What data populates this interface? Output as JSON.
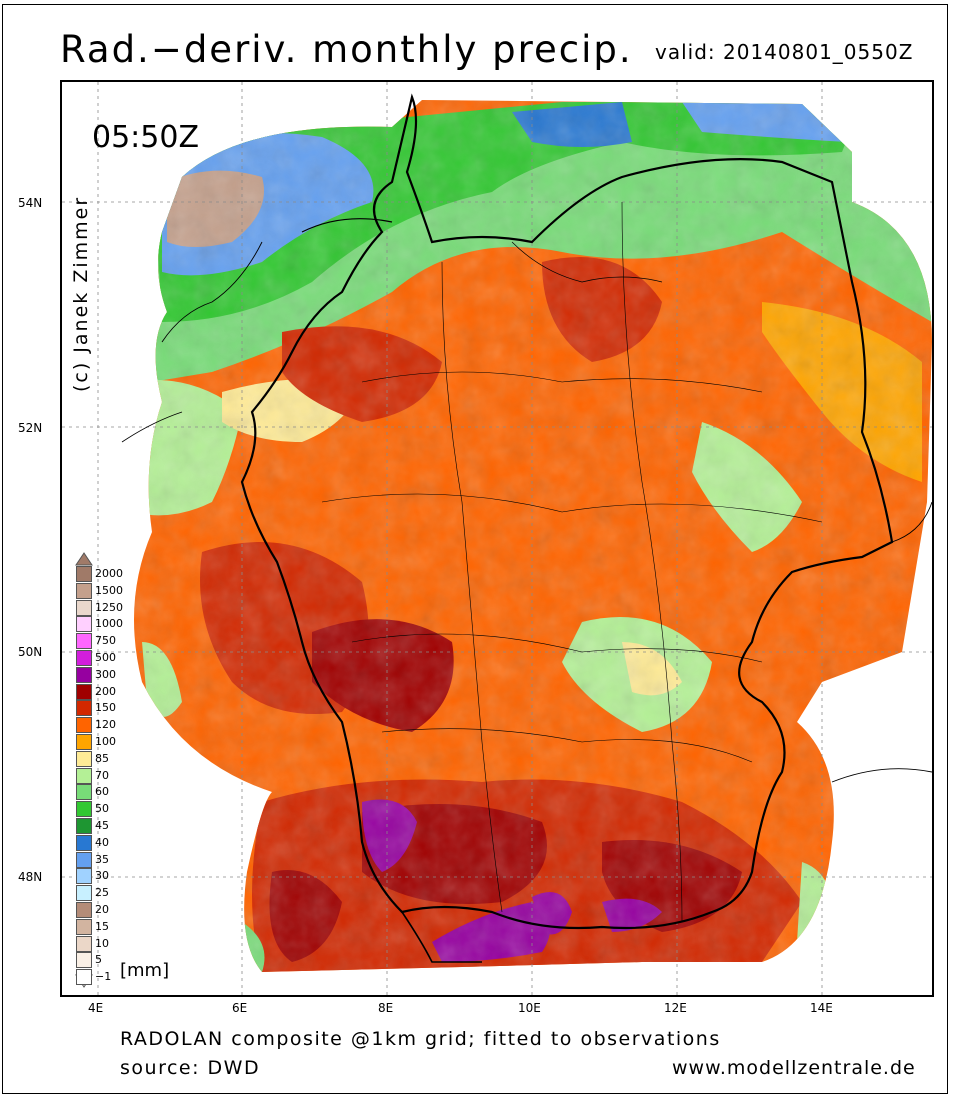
{
  "title": "Rad.−deriv. monthly precip.",
  "valid_label": "valid: 20140801_0550Z",
  "time": "05:50Z",
  "credit": "(c) Janek Zimmer",
  "lat_labels": [
    "54N",
    "52N",
    "50N",
    "48N"
  ],
  "lon_labels": [
    "4E",
    "6E",
    "8E",
    "10E",
    "12E",
    "14E"
  ],
  "legend": {
    "unit": "[mm]",
    "levels": [
      {
        "value": "2000",
        "color": "#a07a68"
      },
      {
        "value": "1500",
        "color": "#c4a08c"
      },
      {
        "value": "1250",
        "color": "#ead8cc"
      },
      {
        "value": "1000",
        "color": "#ffd0ff"
      },
      {
        "value": "750",
        "color": "#ff66ff"
      },
      {
        "value": "500",
        "color": "#d21edc"
      },
      {
        "value": "300",
        "color": "#9600a0"
      },
      {
        "value": "200",
        "color": "#a00000"
      },
      {
        "value": "150",
        "color": "#d22800"
      },
      {
        "value": "120",
        "color": "#ff6400"
      },
      {
        "value": "100",
        "color": "#ffa500"
      },
      {
        "value": "85",
        "color": "#ffeb96"
      },
      {
        "value": "70",
        "color": "#b4f096"
      },
      {
        "value": "60",
        "color": "#78dc78"
      },
      {
        "value": "50",
        "color": "#32c832"
      },
      {
        "value": "45",
        "color": "#1e9632"
      },
      {
        "value": "40",
        "color": "#2878d2"
      },
      {
        "value": "35",
        "color": "#64a0f0"
      },
      {
        "value": "30",
        "color": "#a0d2ff"
      },
      {
        "value": "25",
        "color": "#c8f0ff"
      },
      {
        "value": "20",
        "color": "#b48c78"
      },
      {
        "value": "15",
        "color": "#d2b4a0"
      },
      {
        "value": "10",
        "color": "#ebd7c8"
      },
      {
        "value": "5",
        "color": "#faf0e6"
      },
      {
        "value": "−1",
        "color": "#ffffff"
      }
    ]
  },
  "footer": {
    "line1": "RADOLAN composite @1km grid; fitted to observations",
    "line2": "source: DWD",
    "url": "www.modellzentrale.de"
  }
}
